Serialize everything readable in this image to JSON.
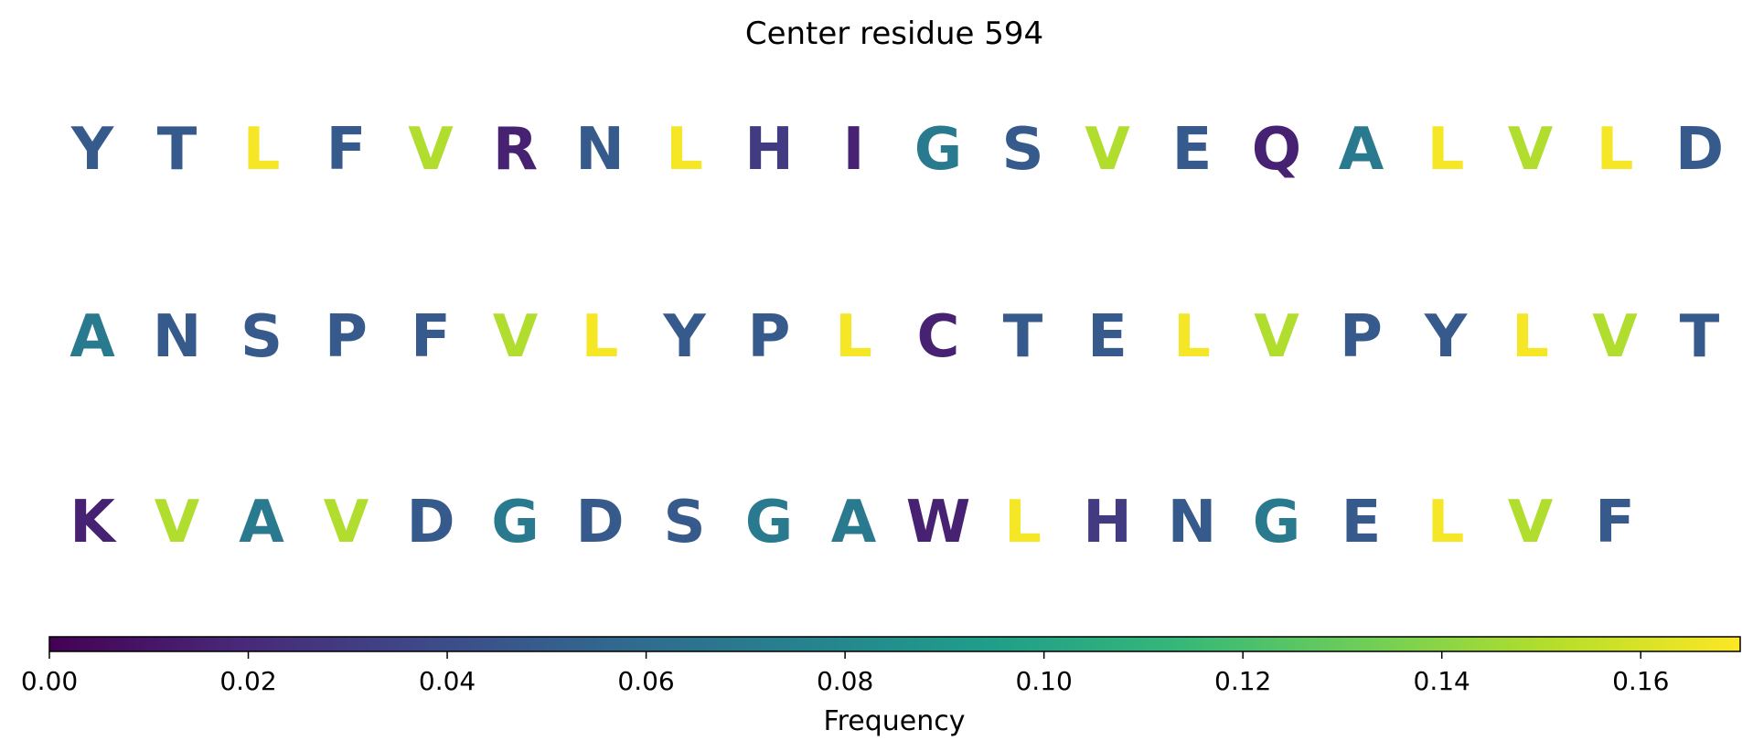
{
  "chart_data": {
    "type": "heatmap",
    "title": "Center residue 594",
    "rows": [
      {
        "letters": [
          "Y",
          "T",
          "L",
          "F",
          "V",
          "R",
          "N",
          "L",
          "H",
          "I",
          "G",
          "S",
          "V",
          "E",
          "Q",
          "A",
          "L",
          "V",
          "L",
          "D"
        ],
        "values": [
          0.048,
          0.048,
          0.168,
          0.048,
          0.15,
          0.016,
          0.048,
          0.168,
          0.03,
          0.016,
          0.07,
          0.048,
          0.15,
          0.048,
          0.016,
          0.07,
          0.168,
          0.15,
          0.168,
          0.048
        ]
      },
      {
        "letters": [
          "A",
          "N",
          "S",
          "P",
          "F",
          "V",
          "L",
          "Y",
          "P",
          "L",
          "C",
          "T",
          "E",
          "L",
          "V",
          "P",
          "Y",
          "L",
          "V",
          "T"
        ],
        "values": [
          0.07,
          0.048,
          0.048,
          0.048,
          0.048,
          0.15,
          0.168,
          0.048,
          0.048,
          0.168,
          0.016,
          0.048,
          0.048,
          0.168,
          0.15,
          0.048,
          0.048,
          0.168,
          0.15,
          0.048
        ]
      },
      {
        "letters": [
          "K",
          "V",
          "A",
          "V",
          "D",
          "G",
          "D",
          "S",
          "G",
          "A",
          "W",
          "L",
          "H",
          "N",
          "G",
          "E",
          "L",
          "V",
          "F"
        ],
        "values": [
          0.016,
          0.15,
          0.07,
          0.15,
          0.048,
          0.07,
          0.048,
          0.048,
          0.07,
          0.07,
          0.016,
          0.168,
          0.03,
          0.048,
          0.07,
          0.048,
          0.168,
          0.15,
          0.048
        ]
      }
    ],
    "colorbar": {
      "label": "Frequency",
      "min": 0.0,
      "max": 0.17,
      "ticks": [
        "0.00",
        "0.02",
        "0.04",
        "0.06",
        "0.08",
        "0.10",
        "0.12",
        "0.14",
        "0.16"
      ],
      "colormap": "viridis"
    }
  }
}
